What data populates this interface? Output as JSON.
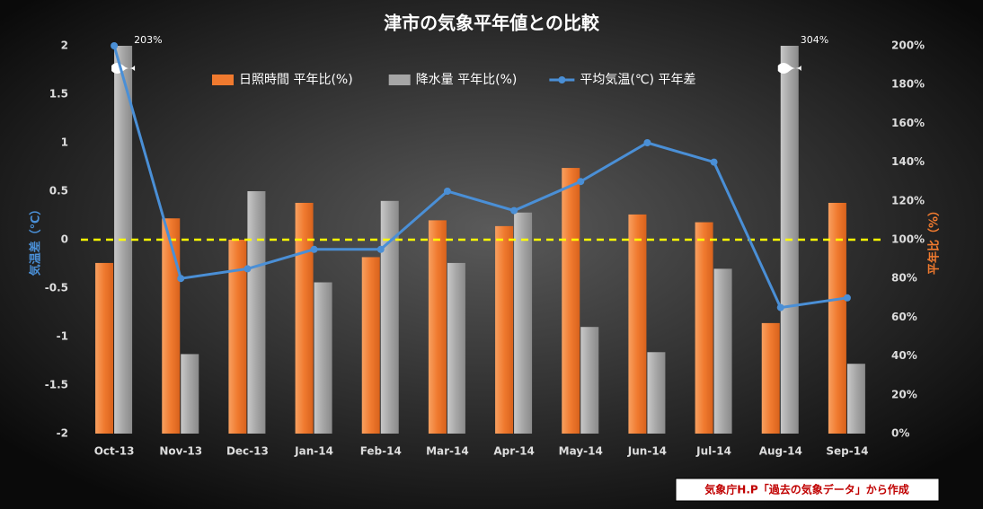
{
  "chart_data": {
    "type": "combo",
    "title": "津市の気象平年値との比較",
    "y_label": "気温差（℃）",
    "y2_label": "平年比（%）",
    "source": "気象庁H.P「過去の気象データ」から作成",
    "categories": [
      "Oct-13",
      "Nov-13",
      "Dec-13",
      "Jan-14",
      "Feb-14",
      "Mar-14",
      "Apr-14",
      "May-14",
      "Jun-14",
      "Jul-14",
      "Aug-14",
      "Sep-14"
    ],
    "series": [
      {
        "name": "日照時間 平年比(%)",
        "type": "bar",
        "axis": "y2",
        "color": "#f07a2f",
        "values": [
          88,
          111,
          100,
          119,
          91,
          110,
          107,
          137,
          113,
          109,
          57,
          119
        ]
      },
      {
        "name": "降水量 平年比(%)",
        "type": "bar",
        "axis": "y2",
        "color": "#a6a6a6",
        "values": [
          203,
          41,
          125,
          78,
          120,
          88,
          114,
          55,
          42,
          85,
          304,
          36
        ],
        "value_labels": [
          "203%",
          null,
          null,
          null,
          null,
          null,
          null,
          null,
          null,
          null,
          "304%",
          null
        ]
      },
      {
        "name": "平均気温(℃) 平年差",
        "type": "line",
        "color": "#4a8fd6",
        "values": [
          2.0,
          -0.4,
          -0.3,
          -0.1,
          -0.1,
          0.5,
          0.3,
          0.6,
          1.0,
          0.8,
          -0.7,
          -0.6
        ]
      }
    ],
    "ylim": [
      -2,
      2
    ],
    "yticks": [
      -2,
      -1.5,
      -1,
      -0.5,
      0,
      0.5,
      1,
      1.5,
      2
    ],
    "y2lim": [
      0,
      200
    ],
    "y2ticks": [
      {
        "value": 0,
        "label": "0%"
      },
      {
        "value": 20,
        "label": "20%"
      },
      {
        "value": 40,
        "label": "40%"
      },
      {
        "value": 60,
        "label": "60%"
      },
      {
        "value": 80,
        "label": "80%"
      },
      {
        "value": 100,
        "label": "100%"
      },
      {
        "value": 120,
        "label": "120%"
      },
      {
        "value": 140,
        "label": "140%"
      },
      {
        "value": 160,
        "label": "160%"
      },
      {
        "value": 180,
        "label": "180%"
      },
      {
        "value": 200,
        "label": "200%"
      }
    ],
    "legend": "top"
  }
}
